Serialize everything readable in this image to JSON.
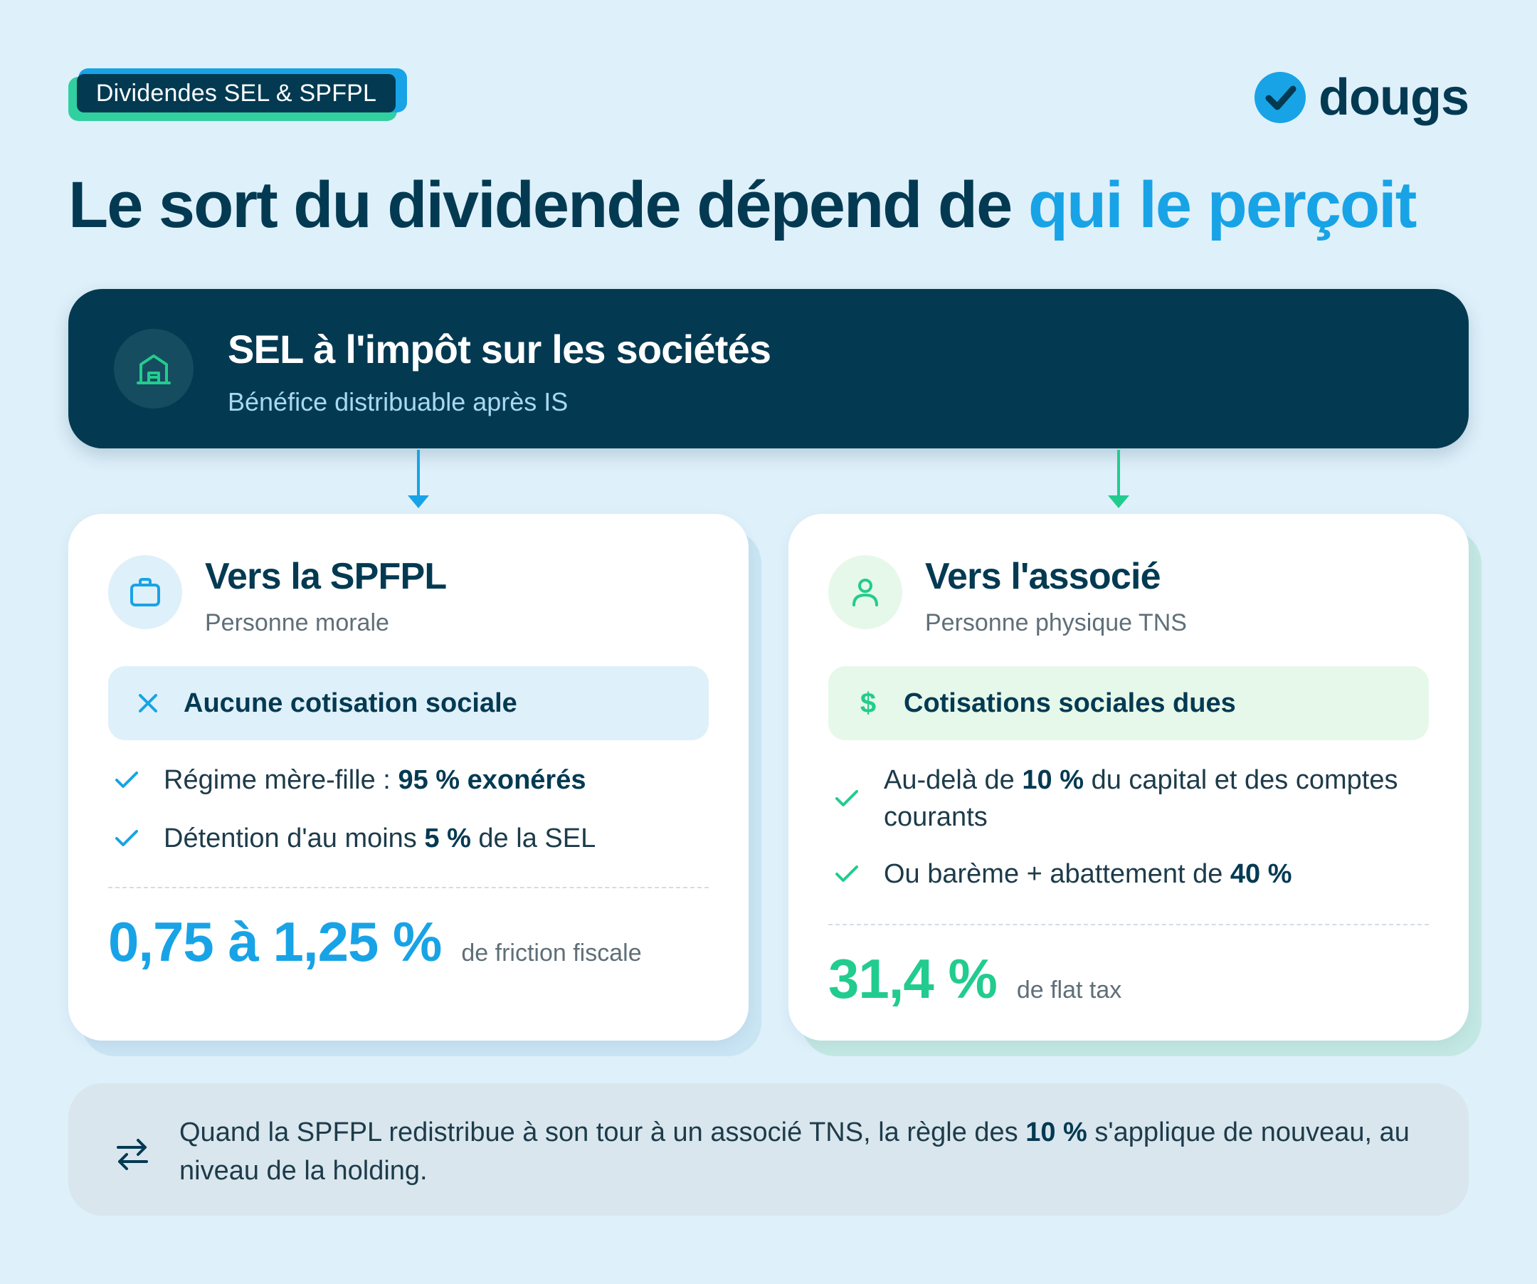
{
  "badge": {
    "label": "Dividendes SEL & SPFPL"
  },
  "logo": {
    "text": "dougs",
    "icon": "check-circle-icon"
  },
  "headline": {
    "main": "Le sort du dividende dépend de",
    "accent": "qui le perçoit"
  },
  "source_card": {
    "icon": "building-icon",
    "title": "SEL à l'impôt sur les sociétés",
    "subtitle": "Bénéfice distribuable après IS"
  },
  "cards": [
    {
      "icon": "briefcase-icon",
      "title": "Vers la SPFPL",
      "subtitle": "Personne morale",
      "pill": {
        "icon": "x-icon",
        "label": "Aucune cotisation sociale"
      },
      "items": [
        {
          "before": "Régime mère-fille :",
          "bold": "95 % exonérés",
          "after": ""
        },
        {
          "before": "Détention d'au moins",
          "bold": "5 %",
          "after": "de la SEL"
        }
      ],
      "stat": {
        "value": "0,75 à 1,25 %",
        "label": "de friction fiscale"
      }
    },
    {
      "icon": "user-icon",
      "title": "Vers l'associé",
      "subtitle": "Personne physique TNS",
      "pill": {
        "icon": "dollar-icon",
        "label": "Cotisations sociales dues"
      },
      "items": [
        {
          "before": "Au-delà de",
          "bold": "10 %",
          "after": "du capital et des comptes courants"
        },
        {
          "before": "Ou barème + abattement de",
          "bold": "40 %",
          "after": ""
        }
      ],
      "stat": {
        "value": "31,4 %",
        "label": "de flat tax"
      }
    }
  ],
  "note": {
    "icon": "swap-arrows-icon",
    "before": "Quand la SPFPL redistribue à son tour à un associé TNS, la règle des",
    "bold": "10 %",
    "after": "s'applique de nouveau, au niveau de la holding."
  },
  "colors": {
    "background": "#def0fa",
    "navy": "#033a52",
    "blue": "#18a3e6",
    "green": "#22cc8e",
    "pill_blue": "#def0fa",
    "pill_green": "#e6f8ea"
  }
}
